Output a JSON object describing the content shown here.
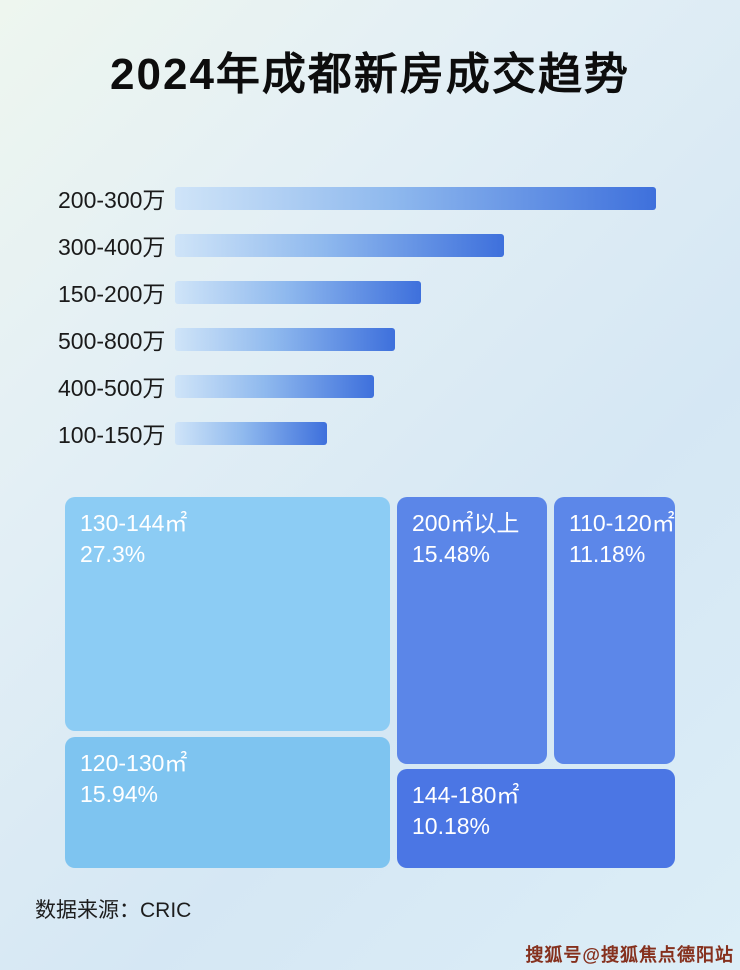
{
  "title": "2024年成都新房成交趋势",
  "source": "数据来源：CRIC",
  "watermark": "搜狐号@搜狐焦点德阳站",
  "colors": {
    "bar_gradient_start": "#cfe4f8",
    "bar_gradient_end": "#3e70dc",
    "treemap_light_blue_1": "#8cccf4",
    "treemap_light_blue_2": "#7ec4f0",
    "treemap_mid_blue": "#5b86e8",
    "treemap_dark_blue": "#4b76e4",
    "watermark_red": "#85301d"
  },
  "chart_data": [
    {
      "type": "bar",
      "orientation": "horizontal",
      "title": "2024年成都新房成交趋势",
      "categories": [
        "200-300万",
        "300-400万",
        "150-200万",
        "500-800万",
        "400-500万",
        "100-150万"
      ],
      "values_relative_to_max_pct": [
        100,
        68,
        51,
        45,
        41,
        32
      ],
      "axis_labels_shown": false,
      "rows": [
        {
          "label": "200-300万",
          "width": "92%"
        },
        {
          "label": "300-400万",
          "width": "63%"
        },
        {
          "label": "150-200万",
          "width": "47%"
        },
        {
          "label": "500-800万",
          "width": "42%"
        },
        {
          "label": "400-500万",
          "width": "38%"
        },
        {
          "label": "100-150万",
          "width": "29%"
        }
      ]
    },
    {
      "type": "treemap",
      "items": [
        {
          "label": "130-144㎡",
          "value_pct": "27.3%"
        },
        {
          "label": "200㎡以上",
          "value_pct": "15.48%"
        },
        {
          "label": "110-120㎡",
          "value_pct": "11.18%"
        },
        {
          "label": "120-130㎡",
          "value_pct": "15.94%"
        },
        {
          "label": "144-180㎡",
          "value_pct": "10.18%"
        }
      ]
    }
  ]
}
